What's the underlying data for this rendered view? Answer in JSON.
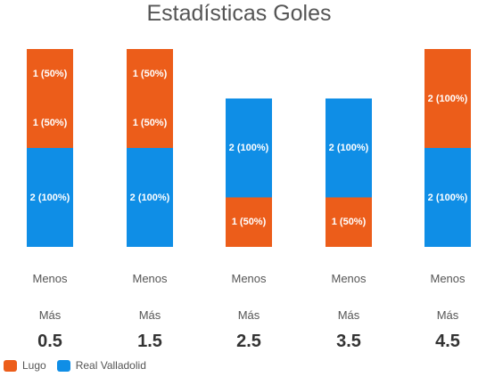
{
  "chart_data": {
    "type": "bar",
    "title": "Estadísticas Goles",
    "xlabel": "",
    "ylabel": "",
    "categories": [
      {
        "menos": "Menos",
        "mas": "Más",
        "threshold": "0.5"
      },
      {
        "menos": "Menos",
        "mas": "Más",
        "threshold": "1.5"
      },
      {
        "menos": "Menos",
        "mas": "Más",
        "threshold": "2.5"
      },
      {
        "menos": "Menos",
        "mas": "Más",
        "threshold": "3.5"
      },
      {
        "menos": "Menos",
        "mas": "Más",
        "threshold": "4.5"
      }
    ],
    "series": [
      {
        "name": "Real Valladolid",
        "color": "#0f8ee6",
        "values": [
          2,
          2,
          2,
          2,
          2
        ],
        "labels": [
          "2 (100%)",
          "2 (100%)",
          "2 (100%)",
          "2 (100%)",
          "2 (100%)"
        ]
      },
      {
        "name": "Lugo",
        "color": "#ec5d1a",
        "values": [
          1,
          1,
          1,
          1,
          2
        ],
        "labels": [
          "1 (50%)",
          "1 (50%)",
          "1 (50%)",
          "1 (50%)",
          "2 (100%)"
        ]
      },
      {
        "name": "Lugo",
        "color": "#ec5d1a",
        "values": [
          1,
          1,
          0,
          0,
          0
        ],
        "labels": [
          "1 (50%)",
          "1 (50%)",
          "",
          "",
          ""
        ]
      }
    ],
    "stack_order_bottom_to_top": [
      [
        0,
        1,
        2
      ],
      [
        0,
        1,
        2
      ],
      [
        1,
        0,
        2
      ],
      [
        1,
        0,
        2
      ],
      [
        0,
        1,
        2
      ]
    ],
    "legend": [
      {
        "name": "Lugo",
        "color": "#ec5d1a"
      },
      {
        "name": "Real Valladolid",
        "color": "#0f8ee6"
      }
    ],
    "legend_position": "bottom-left",
    "stacked": true,
    "grid": false
  }
}
